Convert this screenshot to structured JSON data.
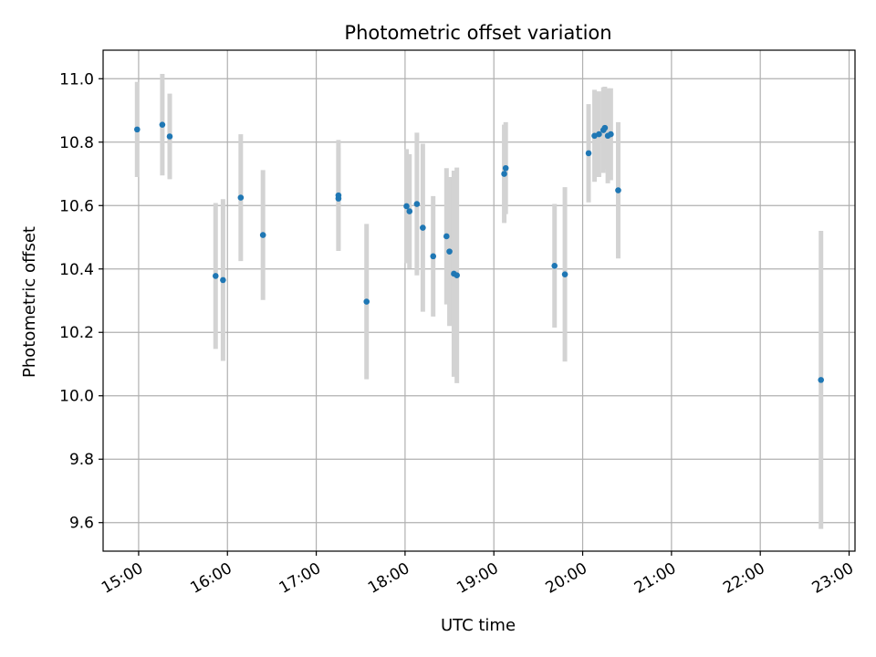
{
  "chart_data": {
    "type": "scatter",
    "title": "Photometric offset variation",
    "xlabel": "UTC time",
    "ylabel": "Photometric offset",
    "x_ticks": [
      "15:00",
      "16:00",
      "17:00",
      "18:00",
      "19:00",
      "20:00",
      "21:00",
      "22:00",
      "23:00"
    ],
    "y_ticks": [
      "9.6",
      "9.8",
      "10.0",
      "10.2",
      "10.4",
      "10.6",
      "10.8",
      "11.0"
    ],
    "xlim": [
      "14:36",
      "23:04"
    ],
    "ylim": [
      9.51,
      11.09
    ],
    "grid": true,
    "legend": false,
    "colors": {
      "points": "#1f77b4",
      "error_bars": "#d3d3d3",
      "grid": "#b0b0b0"
    },
    "points": [
      {
        "x": "14:59",
        "y": 10.84,
        "err": 0.15
      },
      {
        "x": "15:16",
        "y": 10.855,
        "err": 0.16
      },
      {
        "x": "15:21",
        "y": 10.818,
        "err": 0.135
      },
      {
        "x": "15:52",
        "y": 10.378,
        "err": 0.23
      },
      {
        "x": "15:57",
        "y": 10.365,
        "err": 0.255
      },
      {
        "x": "16:09",
        "y": 10.625,
        "err": 0.2
      },
      {
        "x": "16:24",
        "y": 10.507,
        "err": 0.205
      },
      {
        "x": "17:15",
        "y": 10.632,
        "err": 0.175
      },
      {
        "x": "17:15",
        "y": 10.622,
        "err": 0.16
      },
      {
        "x": "17:34",
        "y": 10.297,
        "err": 0.245
      },
      {
        "x": "18:01",
        "y": 10.598,
        "err": 0.18
      },
      {
        "x": "18:03",
        "y": 10.582,
        "err": 0.18
      },
      {
        "x": "18:08",
        "y": 10.605,
        "err": 0.225
      },
      {
        "x": "18:12",
        "y": 10.53,
        "err": 0.265
      },
      {
        "x": "18:19",
        "y": 10.44,
        "err": 0.19
      },
      {
        "x": "18:28",
        "y": 10.503,
        "err": 0.215
      },
      {
        "x": "18:30",
        "y": 10.455,
        "err": 0.235
      },
      {
        "x": "18:33",
        "y": 10.385,
        "err": 0.325
      },
      {
        "x": "18:35",
        "y": 10.38,
        "err": 0.34
      },
      {
        "x": "19:07",
        "y": 10.7,
        "err": 0.155
      },
      {
        "x": "19:08",
        "y": 10.718,
        "err": 0.145
      },
      {
        "x": "19:41",
        "y": 10.41,
        "err": 0.195
      },
      {
        "x": "19:48",
        "y": 10.383,
        "err": 0.275
      },
      {
        "x": "20:04",
        "y": 10.765,
        "err": 0.155
      },
      {
        "x": "20:08",
        "y": 10.82,
        "err": 0.145
      },
      {
        "x": "20:11",
        "y": 10.825,
        "err": 0.135
      },
      {
        "x": "20:14",
        "y": 10.838,
        "err": 0.135
      },
      {
        "x": "20:15",
        "y": 10.845,
        "err": 0.13
      },
      {
        "x": "20:17",
        "y": 10.82,
        "err": 0.15
      },
      {
        "x": "20:19",
        "y": 10.825,
        "err": 0.145
      },
      {
        "x": "20:24",
        "y": 10.648,
        "err": 0.215
      },
      {
        "x": "22:41",
        "y": 10.05,
        "err": 0.47
      }
    ]
  }
}
